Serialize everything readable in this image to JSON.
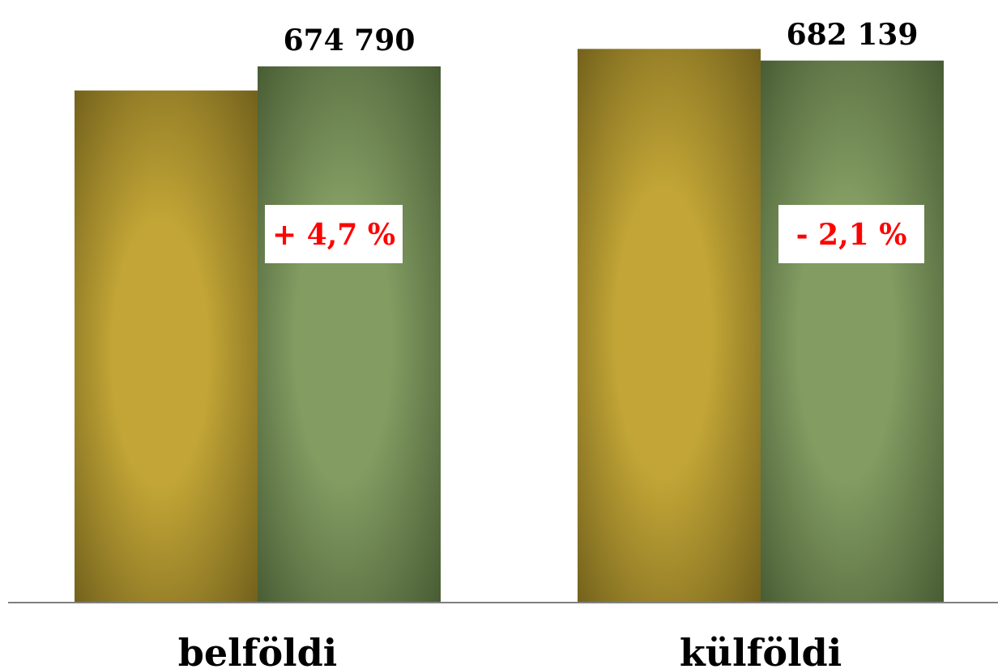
{
  "chart_data": {
    "type": "bar",
    "categories": [
      "belföldi",
      "külföldi"
    ],
    "series": [
      {
        "values": [
          644500,
          696800
        ],
        "color_light": "#c2a536",
        "color_dark": "#6b5b1a"
      },
      {
        "values": [
          674790,
          682139
        ],
        "color_light": "#829c62",
        "color_dark": "#435630"
      }
    ],
    "data_labels": [
      "674 790",
      "682 139"
    ],
    "annotations": [
      "+ 4,7 %",
      "- 2,1 %"
    ],
    "annotation_color": "#ff0000",
    "ylim": [
      0,
      740000
    ],
    "grid": false,
    "legend": "none",
    "xlabel": "",
    "ylabel": ""
  }
}
